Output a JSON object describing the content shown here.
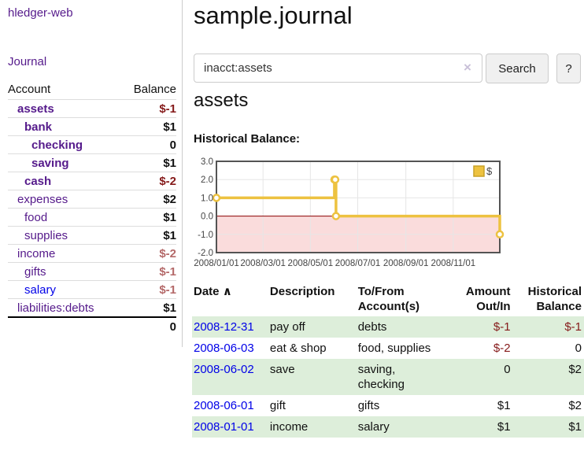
{
  "app": {
    "brand": "hledger-web",
    "nav_journal": "Journal"
  },
  "sidebar": {
    "header": {
      "account": "Account",
      "balance": "Balance"
    },
    "accounts": [
      {
        "name": "assets",
        "balance": "$-1"
      },
      {
        "name": "bank",
        "balance": "$1"
      },
      {
        "name": "checking",
        "balance": "0"
      },
      {
        "name": "saving",
        "balance": "$1"
      },
      {
        "name": "cash",
        "balance": "$-2"
      },
      {
        "name": "expenses",
        "balance": "$2"
      },
      {
        "name": "food",
        "balance": "$1"
      },
      {
        "name": "supplies",
        "balance": "$1"
      },
      {
        "name": "income",
        "balance": "$-2"
      },
      {
        "name": "gifts",
        "balance": "$-1"
      },
      {
        "name": "salary",
        "balance": "$-1"
      },
      {
        "name": "liabilities:debts",
        "balance": "$1"
      }
    ],
    "total": "0"
  },
  "header": {
    "title": "sample.journal"
  },
  "search": {
    "value": "inacct:assets",
    "clear_icon": "×",
    "search_label": "Search",
    "help_label": "?"
  },
  "account_page": {
    "heading": "assets",
    "chart_label": "Historical Balance:"
  },
  "chart_data": {
    "type": "line",
    "title": "Historical Balance:",
    "series": [
      {
        "name": "$",
        "color": "#EDC240",
        "step": true,
        "points": [
          {
            "x": "2008-01-01",
            "y": 1.0
          },
          {
            "x": "2008-06-01",
            "y": 2.0
          },
          {
            "x": "2008-06-02",
            "y": 2.0
          },
          {
            "x": "2008-06-03",
            "y": 0.0
          },
          {
            "x": "2008-12-31",
            "y": -1.0
          }
        ]
      }
    ],
    "x_range": [
      "2008-01-01",
      "2008-12-31"
    ],
    "ylim": [
      -2.0,
      3.0
    ],
    "yticks": [
      3.0,
      2.0,
      1.0,
      0.0,
      -1.0,
      -2.0
    ],
    "xticks": [
      "2008/01/01",
      "2008/03/01",
      "2008/05/01",
      "2008/07/01",
      "2008/09/01",
      "2008/11/01"
    ],
    "grid": true,
    "legend_position": "top-right",
    "legend_label": "$",
    "zero_line_color": "#8b0000",
    "negative_region_color": "#fadcdc"
  },
  "register": {
    "columns": {
      "date": "Date",
      "sort_icon": "∧",
      "description": "Description",
      "tofrom": "To/From Account(s)",
      "amount": "Amount Out/In",
      "balance": "Historical Balance"
    },
    "rows": [
      {
        "date": "2008-12-31",
        "description": "pay off",
        "accounts": "debts",
        "amount": "$-1",
        "balance": "$-1"
      },
      {
        "date": "2008-06-03",
        "description": "eat & shop",
        "accounts": "food, supplies",
        "amount": "$-2",
        "balance": "0"
      },
      {
        "date": "2008-06-02",
        "description": "save",
        "accounts": "saving,\nchecking",
        "amount": "0",
        "balance": "$2"
      },
      {
        "date": "2008-06-01",
        "description": "gift",
        "accounts": "gifts",
        "amount": "$1",
        "balance": "$2"
      },
      {
        "date": "2008-01-01",
        "description": "income",
        "accounts": "salary",
        "amount": "$1",
        "balance": "$1"
      }
    ]
  }
}
